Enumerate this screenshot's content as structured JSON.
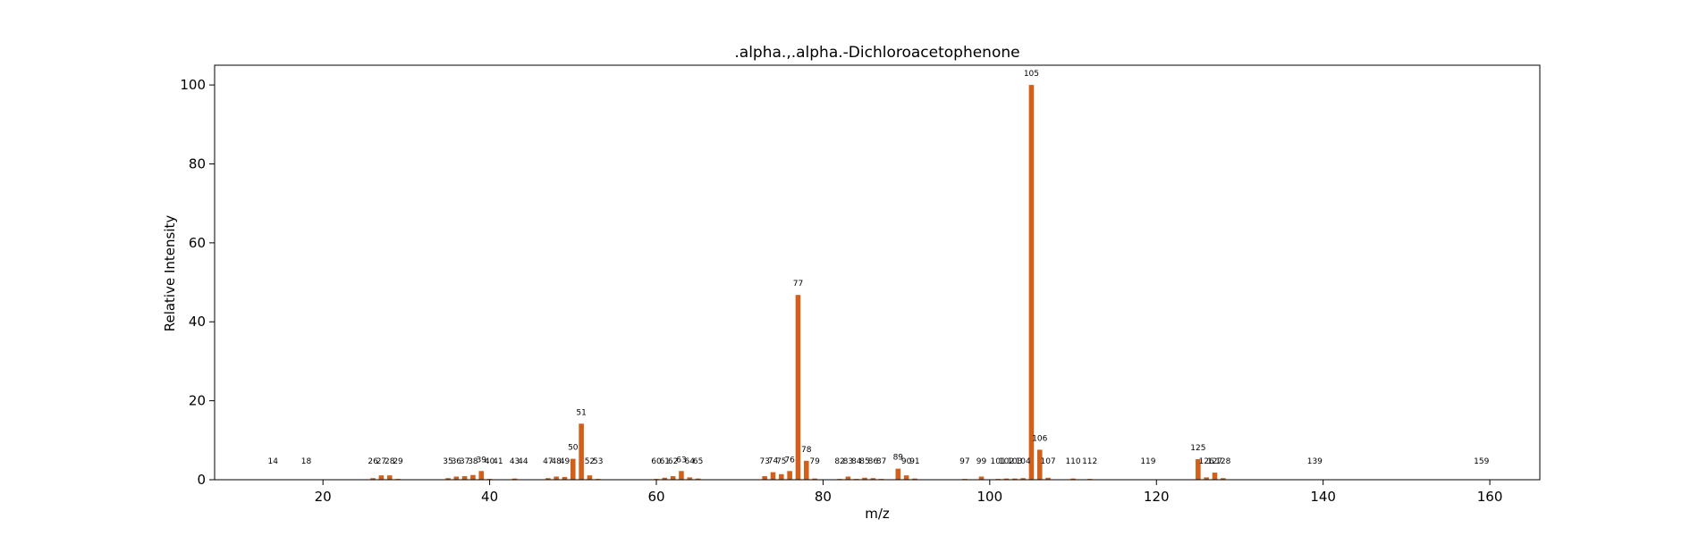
{
  "chart_data": {
    "type": "bar",
    "title": ".alpha.,.alpha.-Dichloroacetophenone",
    "xlabel": "m/z",
    "ylabel": "Relative Intensity",
    "xlim": [
      7,
      166
    ],
    "ylim": [
      0,
      105
    ],
    "xticks": [
      20,
      40,
      60,
      80,
      100,
      120,
      140,
      160
    ],
    "yticks": [
      0,
      20,
      40,
      60,
      80,
      100
    ],
    "grid": false,
    "bar_color": "#d2601a",
    "x": [
      14,
      18,
      26,
      27,
      28,
      29,
      35,
      36,
      37,
      38,
      39,
      40,
      41,
      43,
      44,
      47,
      48,
      49,
      50,
      51,
      52,
      53,
      60,
      61,
      62,
      63,
      64,
      65,
      73,
      74,
      75,
      76,
      77,
      78,
      79,
      82,
      83,
      84,
      85,
      86,
      87,
      89,
      90,
      91,
      97,
      99,
      101,
      102,
      103,
      104,
      105,
      106,
      107,
      110,
      112,
      119,
      125,
      126,
      127,
      128,
      139,
      159
    ],
    "values": [
      0.1,
      0.1,
      0.4,
      1.1,
      1.1,
      0.2,
      0.4,
      0.8,
      0.9,
      1.2,
      2.2,
      0.2,
      0.1,
      0.3,
      0.1,
      0.4,
      0.8,
      0.7,
      5.3,
      14.2,
      1.1,
      0.2,
      0.2,
      0.5,
      0.9,
      2.2,
      0.6,
      0.3,
      0.9,
      1.9,
      1.4,
      2.2,
      46.8,
      4.8,
      0.3,
      0.2,
      0.8,
      0.2,
      0.5,
      0.4,
      0.2,
      2.8,
      1.1,
      0.3,
      0.2,
      0.8,
      0.2,
      0.3,
      0.3,
      0.4,
      100,
      7.6,
      0.5,
      0.3,
      0.2,
      0.1,
      5.2,
      0.6,
      1.8,
      0.4,
      0.1,
      0.1
    ]
  }
}
